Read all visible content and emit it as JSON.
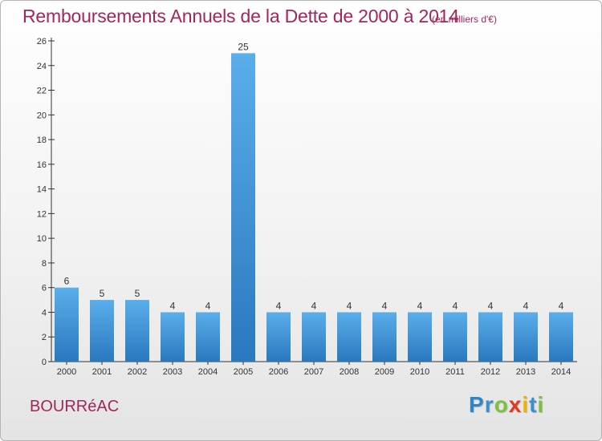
{
  "header": {
    "title": "Remboursements Annuels de la Dette de 2000 à 2014",
    "subtitle": "(en milliers d'€)"
  },
  "footer": {
    "commune": "BOURRéAC",
    "logo_letters": [
      {
        "ch": "P",
        "color": "#2e86c8"
      },
      {
        "ch": "r",
        "color": "#3b8fd0"
      },
      {
        "ch": "o",
        "color": "#7fbf3f"
      },
      {
        "ch": "x",
        "color": "#e23a1f"
      },
      {
        "ch": "i",
        "color": "#f0b400"
      },
      {
        "ch": "t",
        "color": "#3b8fd0"
      },
      {
        "ch": "i",
        "color": "#7fbf3f"
      }
    ]
  },
  "chart_data": {
    "type": "bar",
    "title": "Remboursements Annuels de la Dette de 2000 à 2014",
    "subtitle": "(en milliers d'€)",
    "categories": [
      "2000",
      "2001",
      "2002",
      "2003",
      "2004",
      "2005",
      "2006",
      "2007",
      "2008",
      "2009",
      "2010",
      "2011",
      "2012",
      "2013",
      "2014"
    ],
    "values": [
      6,
      5,
      5,
      4,
      4,
      25,
      4,
      4,
      4,
      4,
      4,
      4,
      4,
      4,
      4
    ],
    "ylim": [
      0,
      26
    ],
    "yticks": [
      0,
      2,
      4,
      6,
      8,
      10,
      12,
      14,
      16,
      18,
      20,
      22,
      24,
      26
    ],
    "xlabel": "",
    "ylabel": "",
    "grid": false,
    "legend": "none",
    "colors": {
      "bar_top": "#5aaeea",
      "bar_bottom": "#2a78bf",
      "axis": "#333333"
    }
  }
}
